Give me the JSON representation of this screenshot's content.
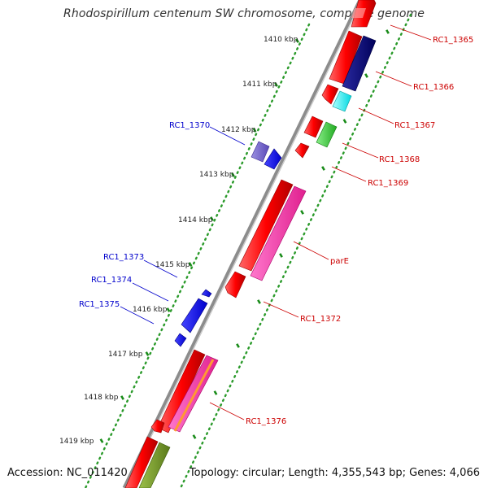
{
  "title": "Rhodospirillum centenum SW chromosome, complete genome",
  "footer": {
    "accession": "Accession: NC_011420",
    "stats": "Topology: circular; Length: 4,355,543 bp; Genes: 4,066"
  },
  "kbp_labels": [
    "1410 kbp",
    "1411 kbp",
    "1412 kbp",
    "1413 kbp",
    "1414 kbp",
    "1415 kbp",
    "1416 kbp",
    "1417 kbp",
    "1418 kbp",
    "1419 kbp"
  ],
  "gene_labels_right": [
    "RC1_1365",
    "RC1_1366",
    "RC1_1367",
    "RC1_1368",
    "RC1_1369",
    "parE",
    "RC1_1372",
    "RC1_1376"
  ],
  "gene_labels_left": [
    "RC1_1370",
    "RC1_1373",
    "RC1_1374",
    "RC1_1375"
  ],
  "colors": {
    "backbone": "#8c8c8c",
    "tick_green": "#1a8c1a",
    "dot_green": "#2a9a2a",
    "label_red": "#cc0000",
    "label_blue": "#0000cc",
    "cds_red": "#ff0000",
    "cds_pink": "#ff33aa",
    "cds_navy": "#000080",
    "cds_cyan": "#00ffff",
    "cds_green": "#33cc33",
    "cds_blue": "#0000ff",
    "cds_slate": "#6a5acd",
    "cds_orange": "#ff9933",
    "cds_olive": "#6b8e23"
  }
}
